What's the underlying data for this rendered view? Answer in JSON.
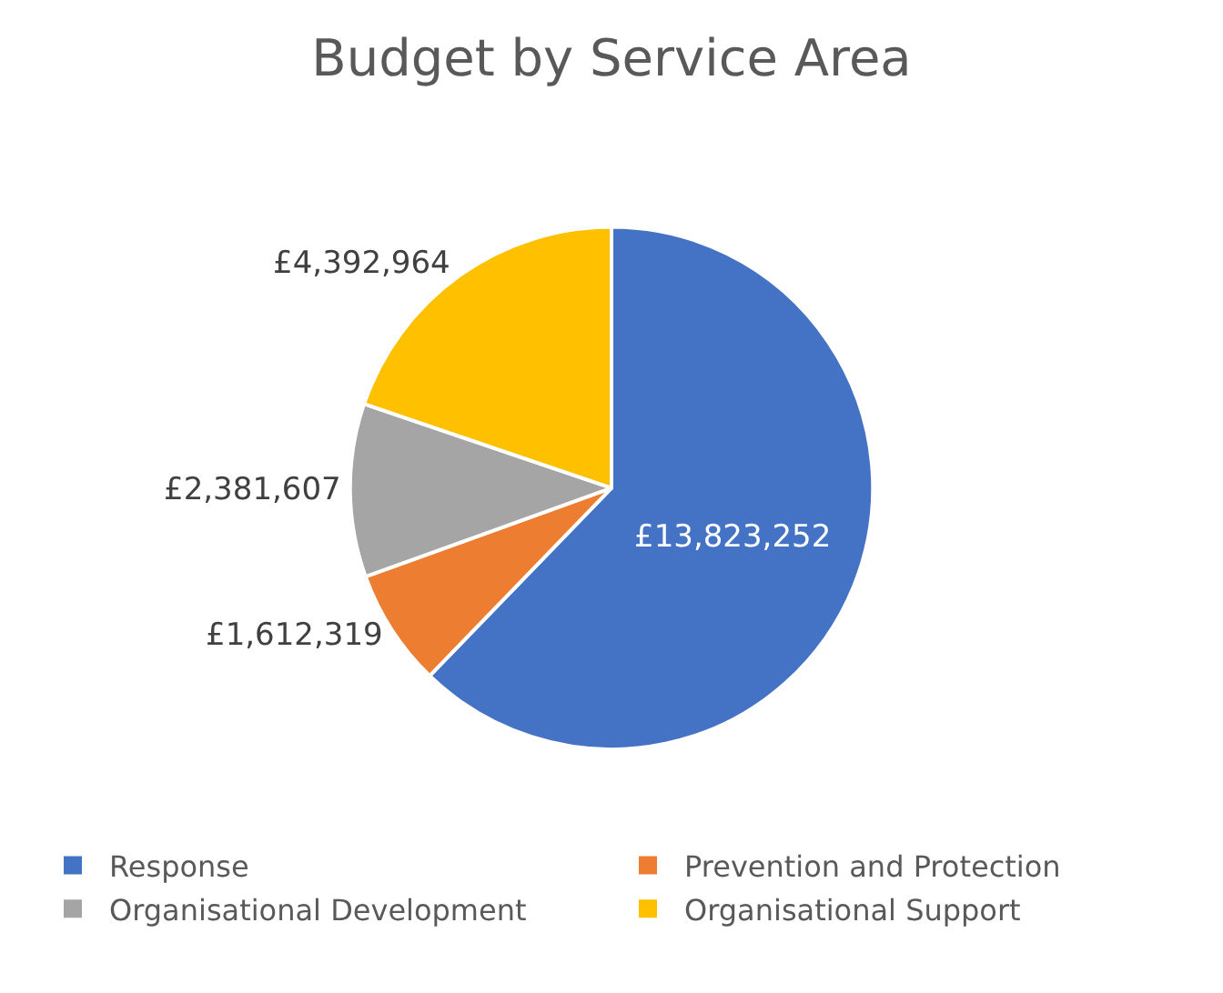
{
  "chart_data": {
    "type": "pie",
    "title": "Budget by Service Area",
    "categories": [
      "Response",
      "Prevention and Protection",
      "Organisational Development",
      "Organisational Support"
    ],
    "values": [
      13823252,
      1612319,
      2381607,
      4392964
    ],
    "colors": [
      "#4472c4",
      "#ed7d31",
      "#a5a5a5",
      "#ffc000"
    ],
    "value_labels": [
      "£13,823,252",
      "£1,612,319",
      "£2,381,607",
      "£4,392,964"
    ],
    "legend": "bottom"
  }
}
